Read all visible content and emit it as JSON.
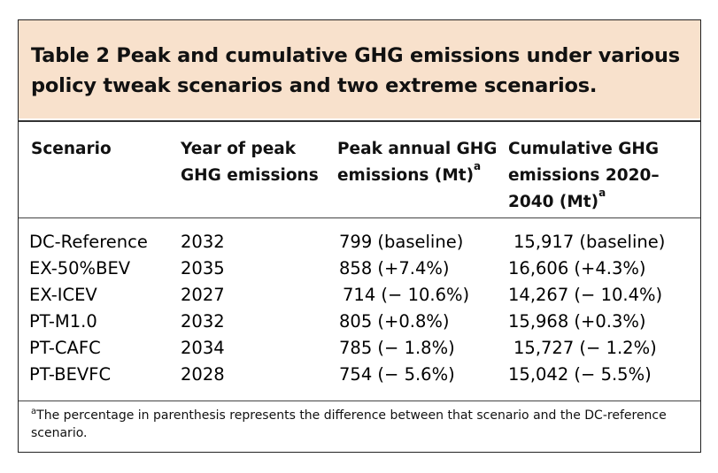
{
  "caption": "Table 2 Peak and cumulative GHG emissions under various policy tweak scenarios and two extreme scenarios.",
  "headers": {
    "scenario": "Scenario",
    "year": "Year of peak GHG emissions",
    "peak": "Peak annual GHG emissions (Mt)",
    "peak_sup": "a",
    "cumulative": "Cumulative GHG emissions 2020–2040 (Mt)",
    "cumulative_sup": "a"
  },
  "rows": [
    {
      "scenario": "DC-Reference",
      "year": "2032",
      "peak": "799 (baseline)",
      "cumulative": "15,917 (baseline)"
    },
    {
      "scenario": "EX-50%BEV",
      "year": "2035",
      "peak": "858 (+7.4%)",
      "cumulative": "16,606 (+4.3%)"
    },
    {
      "scenario": "EX-ICEV",
      "year": "2027",
      "peak": "714 (− 10.6%)",
      "cumulative": "14,267 (− 10.4%)"
    },
    {
      "scenario": "PT-M1.0",
      "year": "2032",
      "peak": "805 (+0.8%)",
      "cumulative": "15,968 (+0.3%)"
    },
    {
      "scenario": "PT-CAFC",
      "year": "2034",
      "peak": "785 (− 1.8%)",
      "cumulative": "15,727 (− 1.2%)"
    },
    {
      "scenario": "PT-BEVFC",
      "year": "2028",
      "peak": "754 (− 5.6%)",
      "cumulative": "15,042 (− 5.5%)"
    }
  ],
  "footnote": {
    "marker": "a",
    "text": "The percentage in parenthesis represents the difference between that scenario and the DC-reference scenario."
  },
  "colors": {
    "caption_background": "#f8e1cc",
    "border": "#222222"
  }
}
